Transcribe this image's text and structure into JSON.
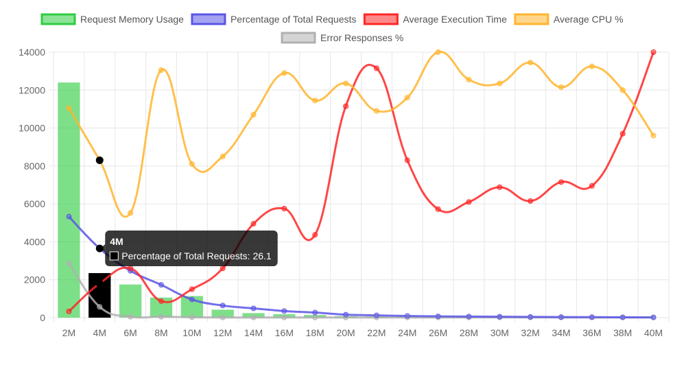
{
  "chart_data": {
    "type": "bar",
    "categories": [
      "2M",
      "4M",
      "6M",
      "8M",
      "10M",
      "12M",
      "14M",
      "16M",
      "18M",
      "20M",
      "22M",
      "24M",
      "26M",
      "28M",
      "30M",
      "32M",
      "34M",
      "36M",
      "38M",
      "40M"
    ],
    "ylim": [
      0,
      14000
    ],
    "yticks": [
      0,
      2000,
      4000,
      6000,
      8000,
      10000,
      12000,
      14000
    ],
    "grid": true,
    "legend_position": "top",
    "series": [
      {
        "name": "Request Memory Usage",
        "kind": "bar",
        "color": "#2ecc40",
        "values": [
          12400,
          2350,
          1750,
          1060,
          1140,
          420,
          240,
          180,
          140,
          80,
          60,
          40,
          25,
          20,
          15,
          10,
          8,
          6,
          4,
          2
        ]
      },
      {
        "name": "Percentage of Total Requests",
        "kind": "line",
        "color": "#5a55e6",
        "values": [
          5330,
          3650,
          2470,
          1730,
          960,
          640,
          490,
          350,
          270,
          160,
          120,
          90,
          70,
          60,
          50,
          40,
          30,
          25,
          20,
          15
        ]
      },
      {
        "name": "Average Execution Time",
        "kind": "line",
        "color": "#ff2626",
        "values": [
          330,
          1800,
          2600,
          870,
          1500,
          2600,
          4950,
          5750,
          4370,
          11150,
          13150,
          8300,
          5720,
          6100,
          6880,
          6150,
          7150,
          6950,
          9700,
          14000
        ]
      },
      {
        "name": "Average CPU %",
        "kind": "line",
        "color": "#ffb52e",
        "values": [
          11050,
          8300,
          5520,
          13050,
          8100,
          8500,
          10700,
          12900,
          11450,
          12350,
          10900,
          11600,
          14000,
          12550,
          12350,
          13450,
          12150,
          13250,
          12000,
          9600
        ]
      },
      {
        "name": "Error Responses %",
        "kind": "line",
        "color": "#b0b0b0",
        "values": [
          2870,
          570,
          50,
          50,
          20,
          10,
          10,
          10,
          10,
          10,
          10,
          10,
          10,
          10,
          10,
          10,
          10,
          10,
          10,
          10
        ]
      }
    ],
    "highlight": {
      "category": "4M",
      "title": "4M",
      "body": "Percentage of Total Requests: 26.1",
      "marker_color": "#000000"
    }
  }
}
